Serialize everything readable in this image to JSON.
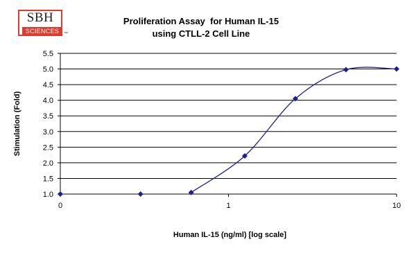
{
  "logo": {
    "top": "SBH",
    "bottom": "SCIENCES",
    "tm": "™"
  },
  "chart_data": {
    "type": "scatter",
    "title_lines": [
      "Proliferation Assay  for Human IL-15",
      "using CTLL-2 Cell Line"
    ],
    "xlabel": "Human IL-15 (ng/ml) [log scale]",
    "ylabel": "Stimulation (Fold)",
    "xscale": "log",
    "xlim": [
      0.1,
      10
    ],
    "xticks": [
      0.1,
      1,
      10
    ],
    "xtick_labels": [
      "0",
      "1",
      "10"
    ],
    "ylim": [
      1.0,
      5.5
    ],
    "yticks": [
      1.0,
      1.5,
      2.0,
      2.5,
      3.0,
      3.5,
      4.0,
      4.5,
      5.0,
      5.5
    ],
    "ytick_labels": [
      "1.0",
      "1.5",
      "2.0",
      "2.5",
      "3.0",
      "3.5",
      "4.0",
      "4.5",
      "5.0",
      "5.5"
    ],
    "grid": "horizontal",
    "legend": "none",
    "series": [
      {
        "x": [
          0.1,
          0.3,
          0.6,
          1.25,
          2.5,
          5.0,
          10.0
        ],
        "y": [
          1.0,
          1.0,
          1.05,
          2.22,
          4.05,
          4.98,
          5.0
        ],
        "color": "#1f1f8f",
        "smooth_from_index": 2
      }
    ]
  }
}
